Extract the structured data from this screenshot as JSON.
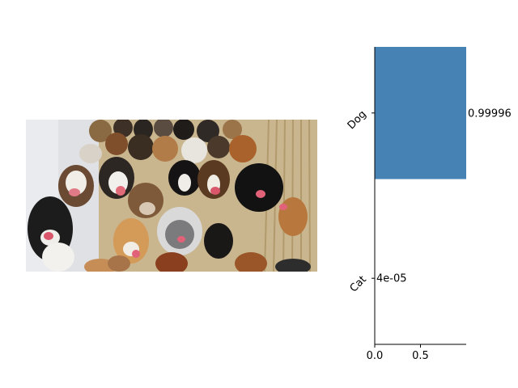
{
  "image_subject": "group of dogs photo",
  "chart_data": {
    "type": "bar",
    "orientation": "horizontal",
    "categories": [
      "Dog",
      "Cat"
    ],
    "values": [
      0.99996,
      4e-05
    ],
    "value_labels": [
      "0.99996",
      "4e-05"
    ],
    "xticks": [
      0.0,
      0.5
    ],
    "xtick_labels": [
      "0.0",
      "0.5"
    ],
    "xlim": [
      0,
      1
    ],
    "title": "",
    "xlabel": "",
    "ylabel": "",
    "bar_color": "#4682b4",
    "grid": false,
    "legend": "none"
  }
}
